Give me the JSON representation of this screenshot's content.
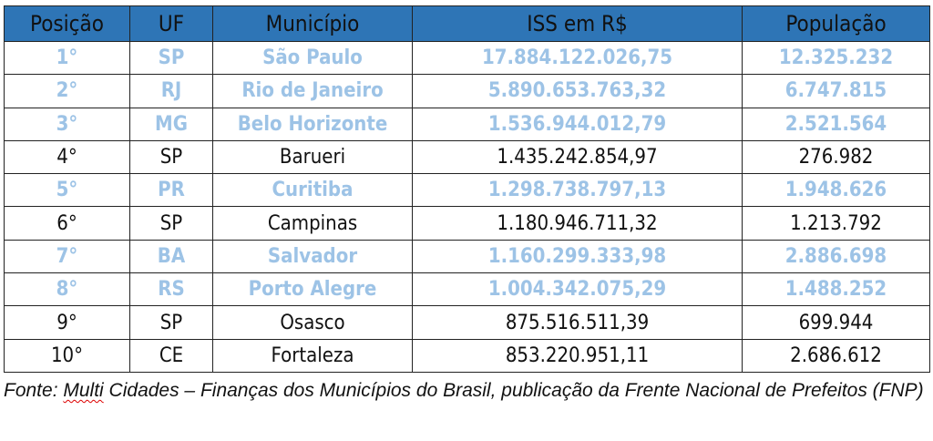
{
  "colors": {
    "header_bg": "#2e75b6",
    "highlight_text": "#9dc3e6",
    "text": "#111111"
  },
  "table": {
    "headers": [
      "Posição",
      "UF",
      "Município",
      "ISS em R$",
      "População"
    ],
    "rows": [
      {
        "pos": "1°",
        "uf": "SP",
        "municipio": "São Paulo",
        "iss": "17.884.122.026,75",
        "populacao": "12.325.232",
        "highlighted": true
      },
      {
        "pos": "2°",
        "uf": "RJ",
        "municipio": "Rio de Janeiro",
        "iss": "5.890.653.763,32",
        "populacao": "6.747.815",
        "highlighted": true
      },
      {
        "pos": "3°",
        "uf": "MG",
        "municipio": "Belo Horizonte",
        "iss": "1.536.944.012,79",
        "populacao": "2.521.564",
        "highlighted": true
      },
      {
        "pos": "4°",
        "uf": "SP",
        "municipio": "Barueri",
        "iss": "1.435.242.854,97",
        "populacao": "276.982",
        "highlighted": false
      },
      {
        "pos": "5°",
        "uf": "PR",
        "municipio": "Curitiba",
        "iss": "1.298.738.797,13",
        "populacao": "1.948.626",
        "highlighted": true
      },
      {
        "pos": "6°",
        "uf": "SP",
        "municipio": "Campinas",
        "iss": "1.180.946.711,32",
        "populacao": "1.213.792",
        "highlighted": false
      },
      {
        "pos": "7°",
        "uf": "BA",
        "municipio": "Salvador",
        "iss": "1.160.299.333,98",
        "populacao": "2.886.698",
        "highlighted": true
      },
      {
        "pos": "8°",
        "uf": "RS",
        "municipio": "Porto Alegre",
        "iss": "1.004.342.075,29",
        "populacao": "1.488.252",
        "highlighted": true
      },
      {
        "pos": "9°",
        "uf": "SP",
        "municipio": "Osasco",
        "iss": "875.516.511,39",
        "populacao": "699.944",
        "highlighted": false
      },
      {
        "pos": "10°",
        "uf": "CE",
        "municipio": "Fortaleza",
        "iss": "853.220.951,11",
        "populacao": "2.686.612",
        "highlighted": false
      }
    ]
  },
  "caption": {
    "prefix": "Fonte: ",
    "flagged_word": "Multi",
    "rest": " Cidades – Finanças dos Municípios do Brasil, publicação da Frente Nacional de Prefeitos (FNP)"
  }
}
